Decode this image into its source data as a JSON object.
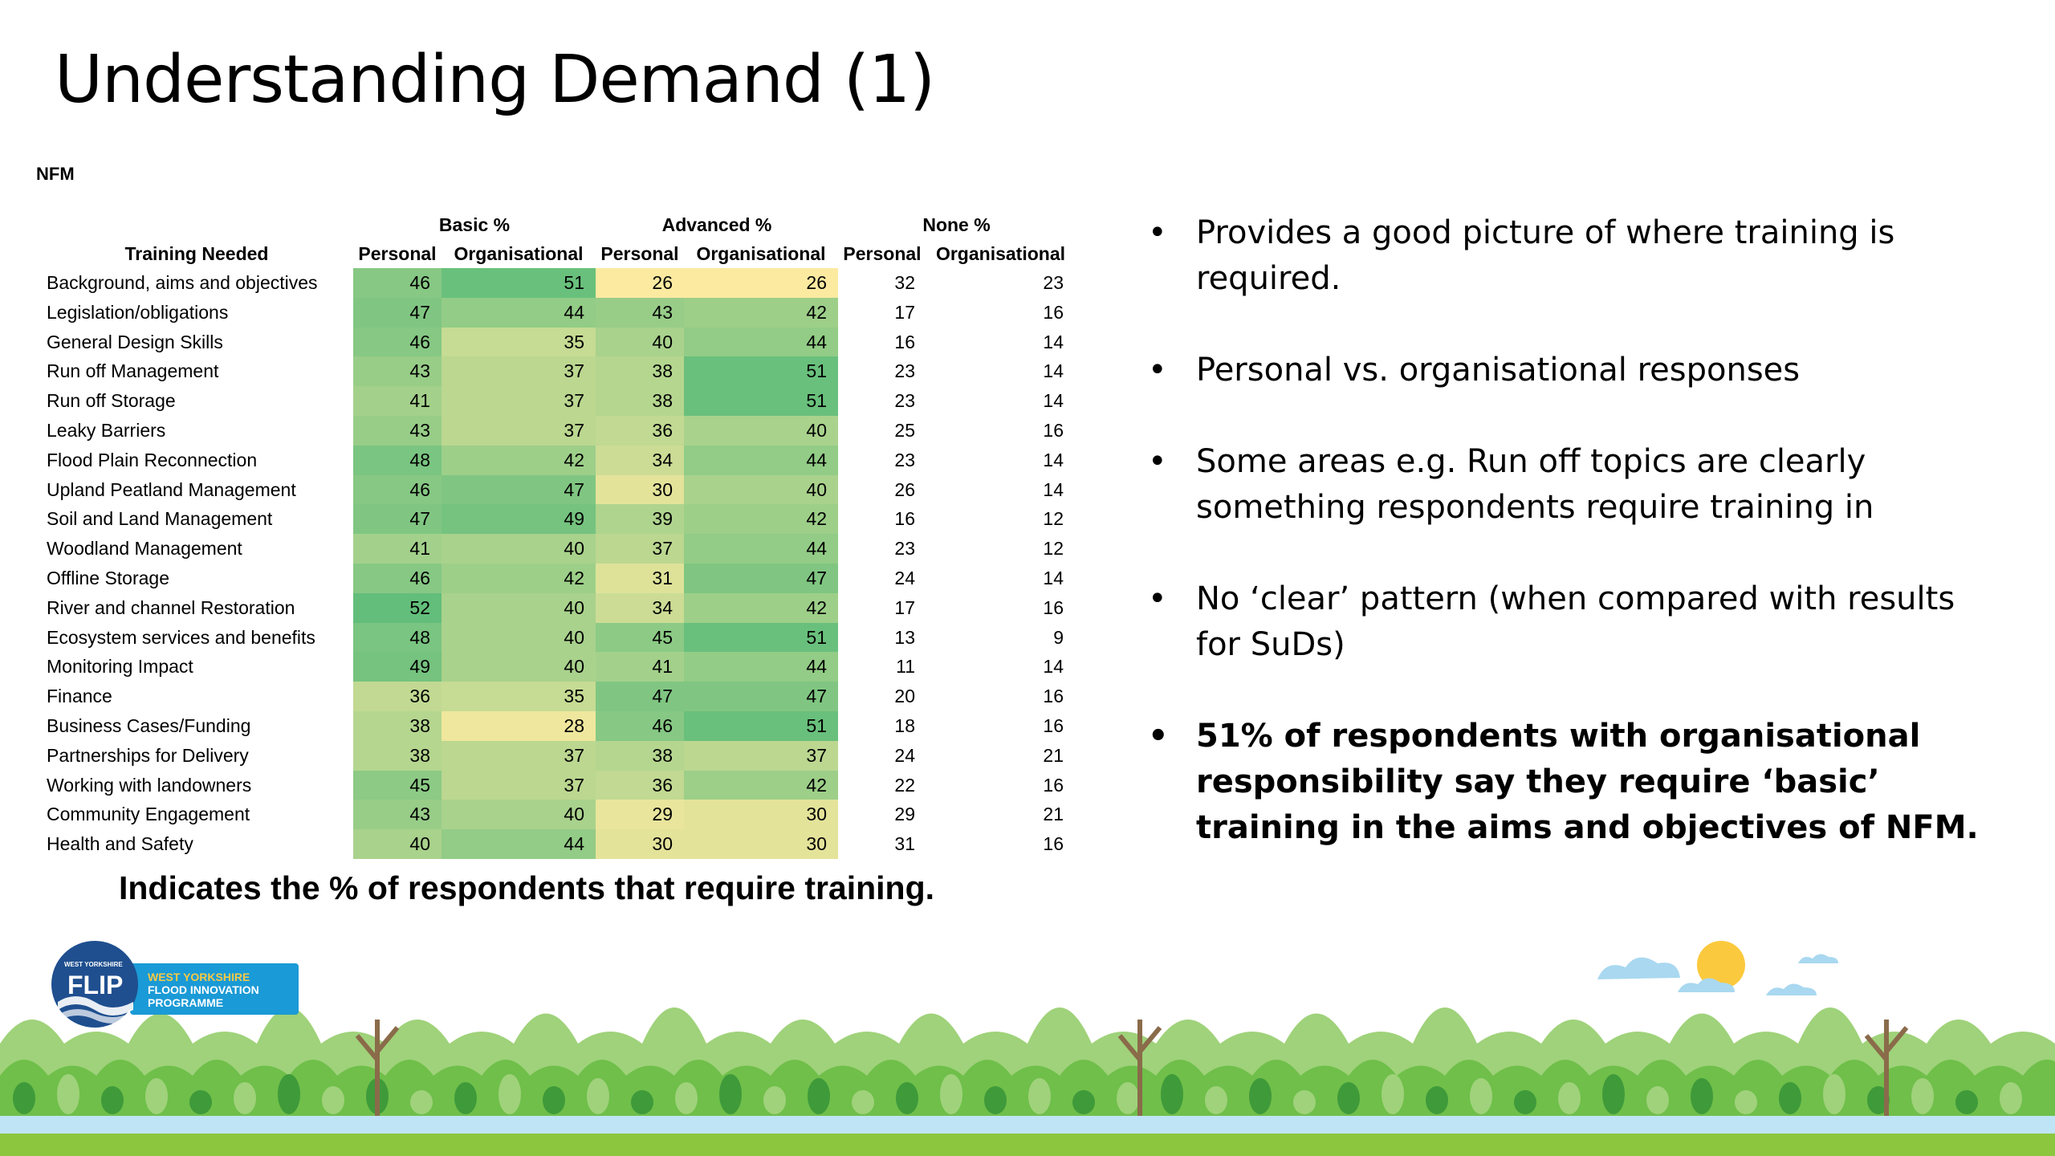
{
  "title": "Understanding Demand (1)",
  "section_label": "NFM",
  "table": {
    "group_headers": [
      "Basic %",
      "Advanced %",
      "None %"
    ],
    "column_headers": [
      "Training Needed",
      "Personal",
      "Organisational",
      "Personal",
      "Organisational",
      "Personal",
      "Organisational"
    ],
    "rows": [
      {
        "label": "Background, aims and objectives",
        "values": [
          46,
          51,
          26,
          26,
          32,
          23
        ]
      },
      {
        "label": "Legislation/obligations",
        "values": [
          47,
          44,
          43,
          42,
          17,
          16
        ]
      },
      {
        "label": "General Design Skills",
        "values": [
          46,
          35,
          40,
          44,
          16,
          14
        ]
      },
      {
        "label": "Run off Management",
        "values": [
          43,
          37,
          38,
          51,
          23,
          14
        ]
      },
      {
        "label": "Run off Storage",
        "values": [
          41,
          37,
          38,
          51,
          23,
          14
        ]
      },
      {
        "label": "Leaky Barriers",
        "values": [
          43,
          37,
          36,
          40,
          25,
          16
        ]
      },
      {
        "label": "Flood Plain Reconnection",
        "values": [
          48,
          42,
          34,
          44,
          23,
          14
        ]
      },
      {
        "label": "Upland Peatland Management",
        "values": [
          46,
          47,
          30,
          40,
          26,
          14
        ]
      },
      {
        "label": "Soil and Land Management",
        "values": [
          47,
          49,
          39,
          42,
          16,
          12
        ]
      },
      {
        "label": "Woodland Management",
        "values": [
          41,
          40,
          37,
          44,
          23,
          12
        ]
      },
      {
        "label": "Offline Storage",
        "values": [
          46,
          42,
          31,
          47,
          24,
          14
        ]
      },
      {
        "label": "River and channel Restoration",
        "values": [
          52,
          40,
          34,
          42,
          17,
          16
        ]
      },
      {
        "label": "Ecosystem services and benefits",
        "values": [
          48,
          40,
          45,
          51,
          13,
          9
        ]
      },
      {
        "label": "Monitoring Impact",
        "values": [
          49,
          40,
          41,
          44,
          11,
          14
        ]
      },
      {
        "label": "Finance",
        "values": [
          36,
          35,
          47,
          47,
          20,
          16
        ]
      },
      {
        "label": "Business Cases/Funding",
        "values": [
          38,
          28,
          46,
          51,
          18,
          16
        ]
      },
      {
        "label": "Partnerships for Delivery",
        "values": [
          38,
          37,
          38,
          37,
          24,
          21
        ]
      },
      {
        "label": "Working with landowners",
        "values": [
          45,
          37,
          36,
          42,
          22,
          16
        ]
      },
      {
        "label": "Community Engagement",
        "values": [
          43,
          40,
          29,
          30,
          29,
          21
        ]
      },
      {
        "label": "Health and Safety",
        "values": [
          40,
          44,
          30,
          30,
          31,
          16
        ]
      }
    ]
  },
  "caption": "Indicates the % of respondents that require training.",
  "bullets": [
    {
      "text": "Provides a good picture of where training is required.",
      "bold": false
    },
    {
      "text": "Personal vs. organisational responses",
      "bold": false
    },
    {
      "text": "Some areas e.g. Run off topics are clearly something respondents require training in",
      "bold": false
    },
    {
      "text": "No ‘clear’ pattern (when compared with results for SuDs)",
      "bold": false
    },
    {
      "text": "51% of respondents with organisational responsibility say they require ‘basic’ training in the aims and objectives of NFM.",
      "bold": true
    }
  ],
  "logo": {
    "mark": "FLIP",
    "small_text": "WEST YORKSHIRE",
    "lines": [
      "WEST YORKSHIRE",
      "FLOOD INNOVATION",
      "PROGRAMME"
    ]
  },
  "colors": {
    "scale_low": "#fbeaa0",
    "scale_high": "#63be7b",
    "logo_blue": "#1a9ad6",
    "logo_navy": "#1f4f8f",
    "tree_light": "#9fd27a",
    "tree_mid": "#6fbf4a",
    "tree_dark": "#3f9a3a",
    "water": "#bfe4f5",
    "ground": "#8cc63f",
    "sun": "#fbc93d",
    "cloud": "#a9d8f0"
  }
}
